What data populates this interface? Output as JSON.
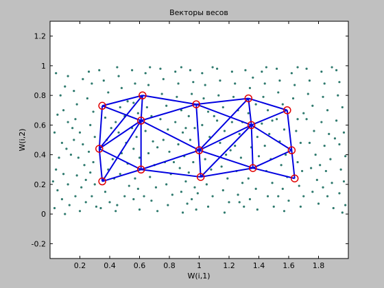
{
  "chart_data": {
    "type": "scatter",
    "title": "Векторы весов",
    "xlabel": "W(i,1)",
    "ylabel": "W(i,2)",
    "xlim": [
      0,
      2
    ],
    "ylim": [
      -0.3,
      1.3
    ],
    "xticks": [
      0.2,
      0.4,
      0.6,
      0.8,
      1,
      1.2,
      1.4,
      1.6,
      1.8
    ],
    "xtick_labels": [
      "0.2",
      "0.4",
      "0.6",
      "0.8",
      "1",
      "1.2",
      "1.4",
      "1.6",
      "1.8"
    ],
    "yticks": [
      -0.2,
      0,
      0.2,
      0.4,
      0.6,
      0.8,
      1,
      1.2
    ],
    "ytick_labels": [
      "-0.2",
      "0",
      "0.2",
      "0.4",
      "0.6",
      "0.8",
      "1",
      "1.2"
    ],
    "grid": false,
    "colors": {
      "points": "#2f7a6e",
      "neurons": "#e00000",
      "links": "#0000e0",
      "axes_bg": "#ffffff",
      "figure_bg": "#c0c0c0"
    },
    "neurons": [
      [
        0.35,
        0.73
      ],
      [
        0.62,
        0.8
      ],
      [
        0.98,
        0.74
      ],
      [
        1.33,
        0.78
      ],
      [
        1.59,
        0.7
      ],
      [
        0.33,
        0.44
      ],
      [
        0.61,
        0.63
      ],
      [
        1.0,
        0.43
      ],
      [
        1.35,
        0.6
      ],
      [
        1.62,
        0.43
      ],
      [
        0.35,
        0.22
      ],
      [
        0.61,
        0.3
      ],
      [
        1.01,
        0.25
      ],
      [
        1.36,
        0.31
      ],
      [
        1.64,
        0.24
      ]
    ],
    "links": [
      [
        0,
        1
      ],
      [
        1,
        2
      ],
      [
        2,
        3
      ],
      [
        3,
        4
      ],
      [
        5,
        6
      ],
      [
        6,
        7
      ],
      [
        7,
        8
      ],
      [
        8,
        9
      ],
      [
        10,
        11
      ],
      [
        11,
        12
      ],
      [
        12,
        13
      ],
      [
        13,
        14
      ],
      [
        0,
        5
      ],
      [
        5,
        10
      ],
      [
        1,
        6
      ],
      [
        6,
        11
      ],
      [
        2,
        7
      ],
      [
        7,
        12
      ],
      [
        3,
        8
      ],
      [
        8,
        13
      ],
      [
        4,
        9
      ],
      [
        9,
        14
      ],
      [
        0,
        6
      ],
      [
        6,
        2
      ],
      [
        2,
        8
      ],
      [
        8,
        4
      ],
      [
        5,
        11
      ],
      [
        11,
        7
      ],
      [
        7,
        13
      ],
      [
        13,
        9
      ],
      [
        1,
        5
      ],
      [
        6,
        10
      ],
      [
        3,
        7
      ],
      [
        8,
        12
      ]
    ],
    "points": [
      [
        0.04,
        0.95
      ],
      [
        0.07,
        0.8
      ],
      [
        0.1,
        0.86
      ],
      [
        0.05,
        0.67
      ],
      [
        0.09,
        0.7
      ],
      [
        0.12,
        0.62
      ],
      [
        0.03,
        0.55
      ],
      [
        0.08,
        0.48
      ],
      [
        0.11,
        0.44
      ],
      [
        0.06,
        0.38
      ],
      [
        0.14,
        0.4
      ],
      [
        0.04,
        0.3
      ],
      [
        0.09,
        0.27
      ],
      [
        0.12,
        0.2
      ],
      [
        0.05,
        0.16
      ],
      [
        0.08,
        0.1
      ],
      [
        0.13,
        0.06
      ],
      [
        0.03,
        0.04
      ],
      [
        0.1,
        0.0
      ],
      [
        0.16,
        0.83
      ],
      [
        0.18,
        0.74
      ],
      [
        0.17,
        0.64
      ],
      [
        0.2,
        0.55
      ],
      [
        0.16,
        0.5
      ],
      [
        0.22,
        0.47
      ],
      [
        0.19,
        0.38
      ],
      [
        0.23,
        0.33
      ],
      [
        0.18,
        0.26
      ],
      [
        0.21,
        0.18
      ],
      [
        0.17,
        0.12
      ],
      [
        0.24,
        0.08
      ],
      [
        0.2,
        0.02
      ],
      [
        0.26,
        0.96
      ],
      [
        0.28,
        0.88
      ],
      [
        0.25,
        0.78
      ],
      [
        0.29,
        0.69
      ],
      [
        0.27,
        0.6
      ],
      [
        0.3,
        0.52
      ],
      [
        0.26,
        0.42
      ],
      [
        0.29,
        0.35
      ],
      [
        0.27,
        0.28
      ],
      [
        0.3,
        0.2
      ],
      [
        0.28,
        0.12
      ],
      [
        0.31,
        0.05
      ],
      [
        0.33,
        0.97
      ],
      [
        0.36,
        0.9
      ],
      [
        0.39,
        0.82
      ],
      [
        0.37,
        0.65
      ],
      [
        0.41,
        0.58
      ],
      [
        0.38,
        0.5
      ],
      [
        0.42,
        0.37
      ],
      [
        0.39,
        0.3
      ],
      [
        0.43,
        0.24
      ],
      [
        0.37,
        0.15
      ],
      [
        0.4,
        0.08
      ],
      [
        0.44,
        0.02
      ],
      [
        0.46,
        0.93
      ],
      [
        0.48,
        0.85
      ],
      [
        0.47,
        0.72
      ],
      [
        0.5,
        0.66
      ],
      [
        0.46,
        0.55
      ],
      [
        0.51,
        0.48
      ],
      [
        0.48,
        0.41
      ],
      [
        0.52,
        0.34
      ],
      [
        0.47,
        0.27
      ],
      [
        0.53,
        0.19
      ],
      [
        0.5,
        0.12
      ],
      [
        0.45,
        0.06
      ],
      [
        0.55,
        0.97
      ],
      [
        0.57,
        0.88
      ],
      [
        0.56,
        0.75
      ],
      [
        0.59,
        0.68
      ],
      [
        0.55,
        0.58
      ],
      [
        0.58,
        0.52
      ],
      [
        0.56,
        0.44
      ],
      [
        0.6,
        0.38
      ],
      [
        0.57,
        0.24
      ],
      [
        0.59,
        0.17
      ],
      [
        0.56,
        0.1
      ],
      [
        0.6,
        0.03
      ],
      [
        0.64,
        0.95
      ],
      [
        0.66,
        0.87
      ],
      [
        0.65,
        0.72
      ],
      [
        0.68,
        0.66
      ],
      [
        0.64,
        0.56
      ],
      [
        0.69,
        0.49
      ],
      [
        0.66,
        0.41
      ],
      [
        0.7,
        0.33
      ],
      [
        0.67,
        0.25
      ],
      [
        0.71,
        0.18
      ],
      [
        0.68,
        0.09
      ],
      [
        0.72,
        0.02
      ],
      [
        0.74,
        0.98
      ],
      [
        0.76,
        0.91
      ],
      [
        0.75,
        0.81
      ],
      [
        0.78,
        0.73
      ],
      [
        0.74,
        0.64
      ],
      [
        0.79,
        0.57
      ],
      [
        0.76,
        0.5
      ],
      [
        0.8,
        0.42
      ],
      [
        0.77,
        0.35
      ],
      [
        0.81,
        0.27
      ],
      [
        0.78,
        0.2
      ],
      [
        0.82,
        0.13
      ],
      [
        0.79,
        0.06
      ],
      [
        0.84,
        0.96
      ],
      [
        0.86,
        0.88
      ],
      [
        0.85,
        0.79
      ],
      [
        0.88,
        0.7
      ],
      [
        0.84,
        0.62
      ],
      [
        0.89,
        0.55
      ],
      [
        0.86,
        0.47
      ],
      [
        0.9,
        0.39
      ],
      [
        0.87,
        0.31
      ],
      [
        0.91,
        0.22
      ],
      [
        0.88,
        0.15
      ],
      [
        0.92,
        0.07
      ],
      [
        0.89,
        0.01
      ],
      [
        0.94,
        0.97
      ],
      [
        0.96,
        0.89
      ],
      [
        0.95,
        0.81
      ],
      [
        0.93,
        0.66
      ],
      [
        0.97,
        0.58
      ],
      [
        0.94,
        0.5
      ],
      [
        0.96,
        0.35
      ],
      [
        0.93,
        0.28
      ],
      [
        0.97,
        0.18
      ],
      [
        0.95,
        0.1
      ],
      [
        0.98,
        0.03
      ],
      [
        1.02,
        0.95
      ],
      [
        1.04,
        0.87
      ],
      [
        1.03,
        0.78
      ],
      [
        1.06,
        0.69
      ],
      [
        1.02,
        0.6
      ],
      [
        1.07,
        0.52
      ],
      [
        1.04,
        0.37
      ],
      [
        1.08,
        0.3
      ],
      [
        1.05,
        0.2
      ],
      [
        1.09,
        0.12
      ],
      [
        1.06,
        0.05
      ],
      [
        1.12,
        0.98
      ],
      [
        1.14,
        0.9
      ],
      [
        1.13,
        0.8
      ],
      [
        1.16,
        0.72
      ],
      [
        1.12,
        0.63
      ],
      [
        1.17,
        0.56
      ],
      [
        1.14,
        0.48
      ],
      [
        1.18,
        0.4
      ],
      [
        1.15,
        0.32
      ],
      [
        1.19,
        0.24
      ],
      [
        1.16,
        0.16
      ],
      [
        1.2,
        0.08
      ],
      [
        1.17,
        0.01
      ],
      [
        1.22,
        0.96
      ],
      [
        1.24,
        0.88
      ],
      [
        1.23,
        0.79
      ],
      [
        1.26,
        0.7
      ],
      [
        1.22,
        0.62
      ],
      [
        1.27,
        0.54
      ],
      [
        1.24,
        0.46
      ],
      [
        1.28,
        0.38
      ],
      [
        1.25,
        0.29
      ],
      [
        1.29,
        0.21
      ],
      [
        1.26,
        0.13
      ],
      [
        1.3,
        0.05
      ],
      [
        1.31,
        0.97
      ],
      [
        1.36,
        0.92
      ],
      [
        1.34,
        0.85
      ],
      [
        1.38,
        0.74
      ],
      [
        1.33,
        0.68
      ],
      [
        1.39,
        0.52
      ],
      [
        1.35,
        0.45
      ],
      [
        1.4,
        0.39
      ],
      [
        1.33,
        0.24
      ],
      [
        1.38,
        0.17
      ],
      [
        1.34,
        0.1
      ],
      [
        1.39,
        0.03
      ],
      [
        1.42,
        0.96
      ],
      [
        1.44,
        0.88
      ],
      [
        1.43,
        0.79
      ],
      [
        1.46,
        0.7
      ],
      [
        1.42,
        0.61
      ],
      [
        1.47,
        0.54
      ],
      [
        1.44,
        0.46
      ],
      [
        1.48,
        0.37
      ],
      [
        1.45,
        0.29
      ],
      [
        1.49,
        0.21
      ],
      [
        1.46,
        0.12
      ],
      [
        1.5,
        0.05
      ],
      [
        1.52,
        0.98
      ],
      [
        1.54,
        0.9
      ],
      [
        1.53,
        0.82
      ],
      [
        1.56,
        0.74
      ],
      [
        1.52,
        0.64
      ],
      [
        1.57,
        0.57
      ],
      [
        1.54,
        0.49
      ],
      [
        1.58,
        0.4
      ],
      [
        1.55,
        0.33
      ],
      [
        1.59,
        0.25
      ],
      [
        1.56,
        0.17
      ],
      [
        1.6,
        0.09
      ],
      [
        1.57,
        0.02
      ],
      [
        1.62,
        0.95
      ],
      [
        1.64,
        0.87
      ],
      [
        1.63,
        0.78
      ],
      [
        1.66,
        0.64
      ],
      [
        1.65,
        0.56
      ],
      [
        1.68,
        0.48
      ],
      [
        1.66,
        0.35
      ],
      [
        1.69,
        0.29
      ],
      [
        1.67,
        0.19
      ],
      [
        1.7,
        0.12
      ],
      [
        1.68,
        0.05
      ],
      [
        1.72,
        0.98
      ],
      [
        1.74,
        0.9
      ],
      [
        1.73,
        0.81
      ],
      [
        1.76,
        0.73
      ],
      [
        1.72,
        0.64
      ],
      [
        1.77,
        0.56
      ],
      [
        1.74,
        0.48
      ],
      [
        1.78,
        0.4
      ],
      [
        1.75,
        0.31
      ],
      [
        1.79,
        0.23
      ],
      [
        1.76,
        0.15
      ],
      [
        1.8,
        0.07
      ],
      [
        1.82,
        0.96
      ],
      [
        1.84,
        0.88
      ],
      [
        1.83,
        0.79
      ],
      [
        1.86,
        0.7
      ],
      [
        1.82,
        0.62
      ],
      [
        1.87,
        0.54
      ],
      [
        1.84,
        0.46
      ],
      [
        1.88,
        0.37
      ],
      [
        1.85,
        0.29
      ],
      [
        1.89,
        0.21
      ],
      [
        1.86,
        0.12
      ],
      [
        1.9,
        0.04
      ],
      [
        1.92,
        0.97
      ],
      [
        1.94,
        0.89
      ],
      [
        1.93,
        0.8
      ],
      [
        1.96,
        0.72
      ],
      [
        1.92,
        0.63
      ],
      [
        1.97,
        0.55
      ],
      [
        1.94,
        0.47
      ],
      [
        1.98,
        0.39
      ],
      [
        1.95,
        0.3
      ],
      [
        1.97,
        0.22
      ],
      [
        1.94,
        0.14
      ],
      [
        1.98,
        0.06
      ],
      [
        1.96,
        0.01
      ],
      [
        0.12,
        0.93
      ],
      [
        0.22,
        0.91
      ],
      [
        0.45,
        0.99
      ],
      [
        0.67,
        0.99
      ],
      [
        0.88,
        0.99
      ],
      [
        1.09,
        0.99
      ],
      [
        1.45,
        0.99
      ],
      [
        1.66,
        0.99
      ],
      [
        1.89,
        0.99
      ],
      [
        0.15,
        0.58
      ],
      [
        0.24,
        0.23
      ],
      [
        0.44,
        0.62
      ],
      [
        0.52,
        0.76
      ],
      [
        0.72,
        0.45
      ],
      [
        0.83,
        0.35
      ],
      [
        0.91,
        0.58
      ],
      [
        1.1,
        0.66
      ],
      [
        1.21,
        0.43
      ],
      [
        1.29,
        0.62
      ],
      [
        1.49,
        0.63
      ],
      [
        1.7,
        0.68
      ],
      [
        1.81,
        0.33
      ],
      [
        1.91,
        0.51
      ],
      [
        0.02,
        0.22
      ],
      [
        0.34,
        0.04
      ],
      [
        0.63,
        0.12
      ],
      [
        0.99,
        0.14
      ],
      [
        1.27,
        0.08
      ],
      [
        1.53,
        0.12
      ],
      [
        1.83,
        0.18
      ]
    ]
  }
}
